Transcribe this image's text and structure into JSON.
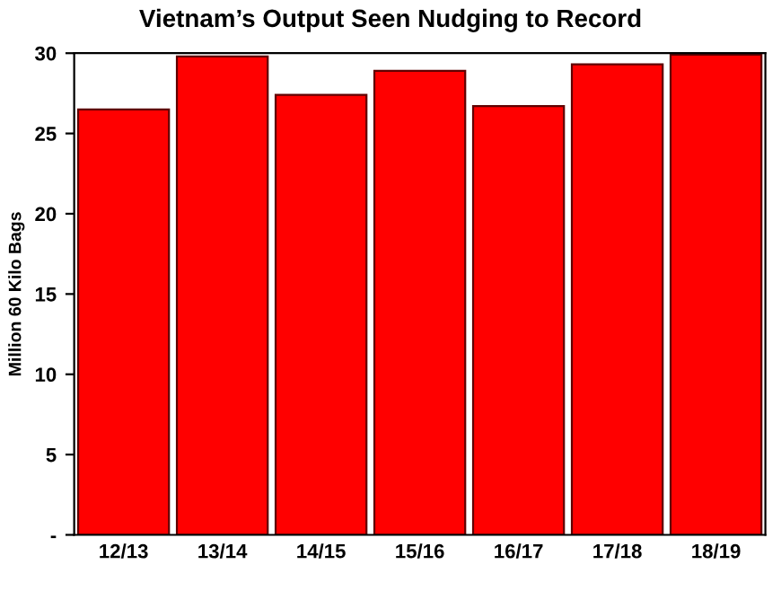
{
  "chart_data": {
    "type": "bar",
    "title": "Vietnam’s Output Seen Nudging to Record",
    "ylabel": "Million 60 Kilo Bags",
    "categories": [
      "12/13",
      "13/14",
      "14/15",
      "15/16",
      "16/17",
      "17/18",
      "18/19"
    ],
    "values": [
      26.5,
      29.8,
      27.4,
      28.9,
      26.7,
      29.3,
      29.9
    ],
    "color": "#ff0000",
    "ylim": [
      0,
      30
    ],
    "yticks": [
      {
        "value": 0,
        "label": "-"
      },
      5,
      10,
      15,
      20,
      25,
      30
    ],
    "grid": false,
    "legend": false
  }
}
